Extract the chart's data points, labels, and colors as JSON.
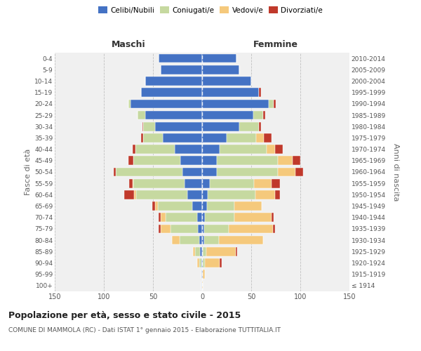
{
  "age_groups": [
    "100+",
    "95-99",
    "90-94",
    "85-89",
    "80-84",
    "75-79",
    "70-74",
    "65-69",
    "60-64",
    "55-59",
    "50-54",
    "45-49",
    "40-44",
    "35-39",
    "30-34",
    "25-29",
    "20-24",
    "15-19",
    "10-14",
    "5-9",
    "0-4"
  ],
  "birth_years": [
    "≤ 1914",
    "1915-1919",
    "1920-1924",
    "1925-1929",
    "1930-1934",
    "1935-1939",
    "1940-1944",
    "1945-1949",
    "1950-1954",
    "1955-1959",
    "1960-1964",
    "1965-1969",
    "1970-1974",
    "1975-1979",
    "1980-1984",
    "1985-1989",
    "1990-1994",
    "1995-1999",
    "2000-2004",
    "2005-2009",
    "2010-2014"
  ],
  "maschi": {
    "celibi": [
      1,
      1,
      1,
      2,
      3,
      4,
      5,
      10,
      15,
      18,
      20,
      22,
      28,
      40,
      48,
      58,
      73,
      62,
      58,
      42,
      44
    ],
    "coniugati": [
      0,
      0,
      2,
      5,
      20,
      28,
      32,
      35,
      52,
      52,
      68,
      48,
      40,
      20,
      12,
      8,
      2,
      0,
      0,
      0,
      0
    ],
    "vedovi": [
      0,
      0,
      2,
      2,
      8,
      10,
      5,
      3,
      2,
      1,
      0,
      0,
      0,
      0,
      0,
      0,
      0,
      0,
      0,
      0,
      0
    ],
    "divorziati": [
      0,
      0,
      0,
      0,
      0,
      2,
      2,
      3,
      10,
      3,
      2,
      5,
      3,
      2,
      1,
      0,
      0,
      0,
      0,
      0,
      0
    ]
  },
  "femmine": {
    "nubili": [
      0,
      1,
      1,
      1,
      2,
      2,
      3,
      5,
      6,
      8,
      15,
      15,
      18,
      25,
      38,
      52,
      68,
      58,
      50,
      38,
      35
    ],
    "coniugate": [
      0,
      0,
      2,
      3,
      15,
      25,
      30,
      28,
      48,
      45,
      62,
      62,
      48,
      30,
      20,
      10,
      5,
      0,
      0,
      0,
      0
    ],
    "vedove": [
      1,
      2,
      15,
      30,
      45,
      45,
      38,
      28,
      20,
      18,
      18,
      15,
      8,
      8,
      0,
      0,
      0,
      0,
      0,
      0,
      0
    ],
    "divorziate": [
      0,
      0,
      2,
      2,
      0,
      2,
      2,
      0,
      5,
      8,
      8,
      8,
      8,
      8,
      2,
      2,
      2,
      2,
      0,
      0,
      0
    ]
  },
  "colors": {
    "celibi": "#4472C4",
    "coniugati": "#C6D9A0",
    "vedovi": "#F5C97C",
    "divorziati": "#C0392B"
  },
  "xlim": 150,
  "title": "Popolazione per età, sesso e stato civile - 2015",
  "subtitle": "COMUNE DI MAMMOLA (RC) - Dati ISTAT 1° gennaio 2015 - Elaborazione TUTTITALIA.IT",
  "ylabel_left": "Fasce di età",
  "ylabel_right": "Anni di nascita",
  "xlabel_left": "Maschi",
  "xlabel_right": "Femmine",
  "background_color": "#ffffff",
  "grid_color": "#cccccc"
}
